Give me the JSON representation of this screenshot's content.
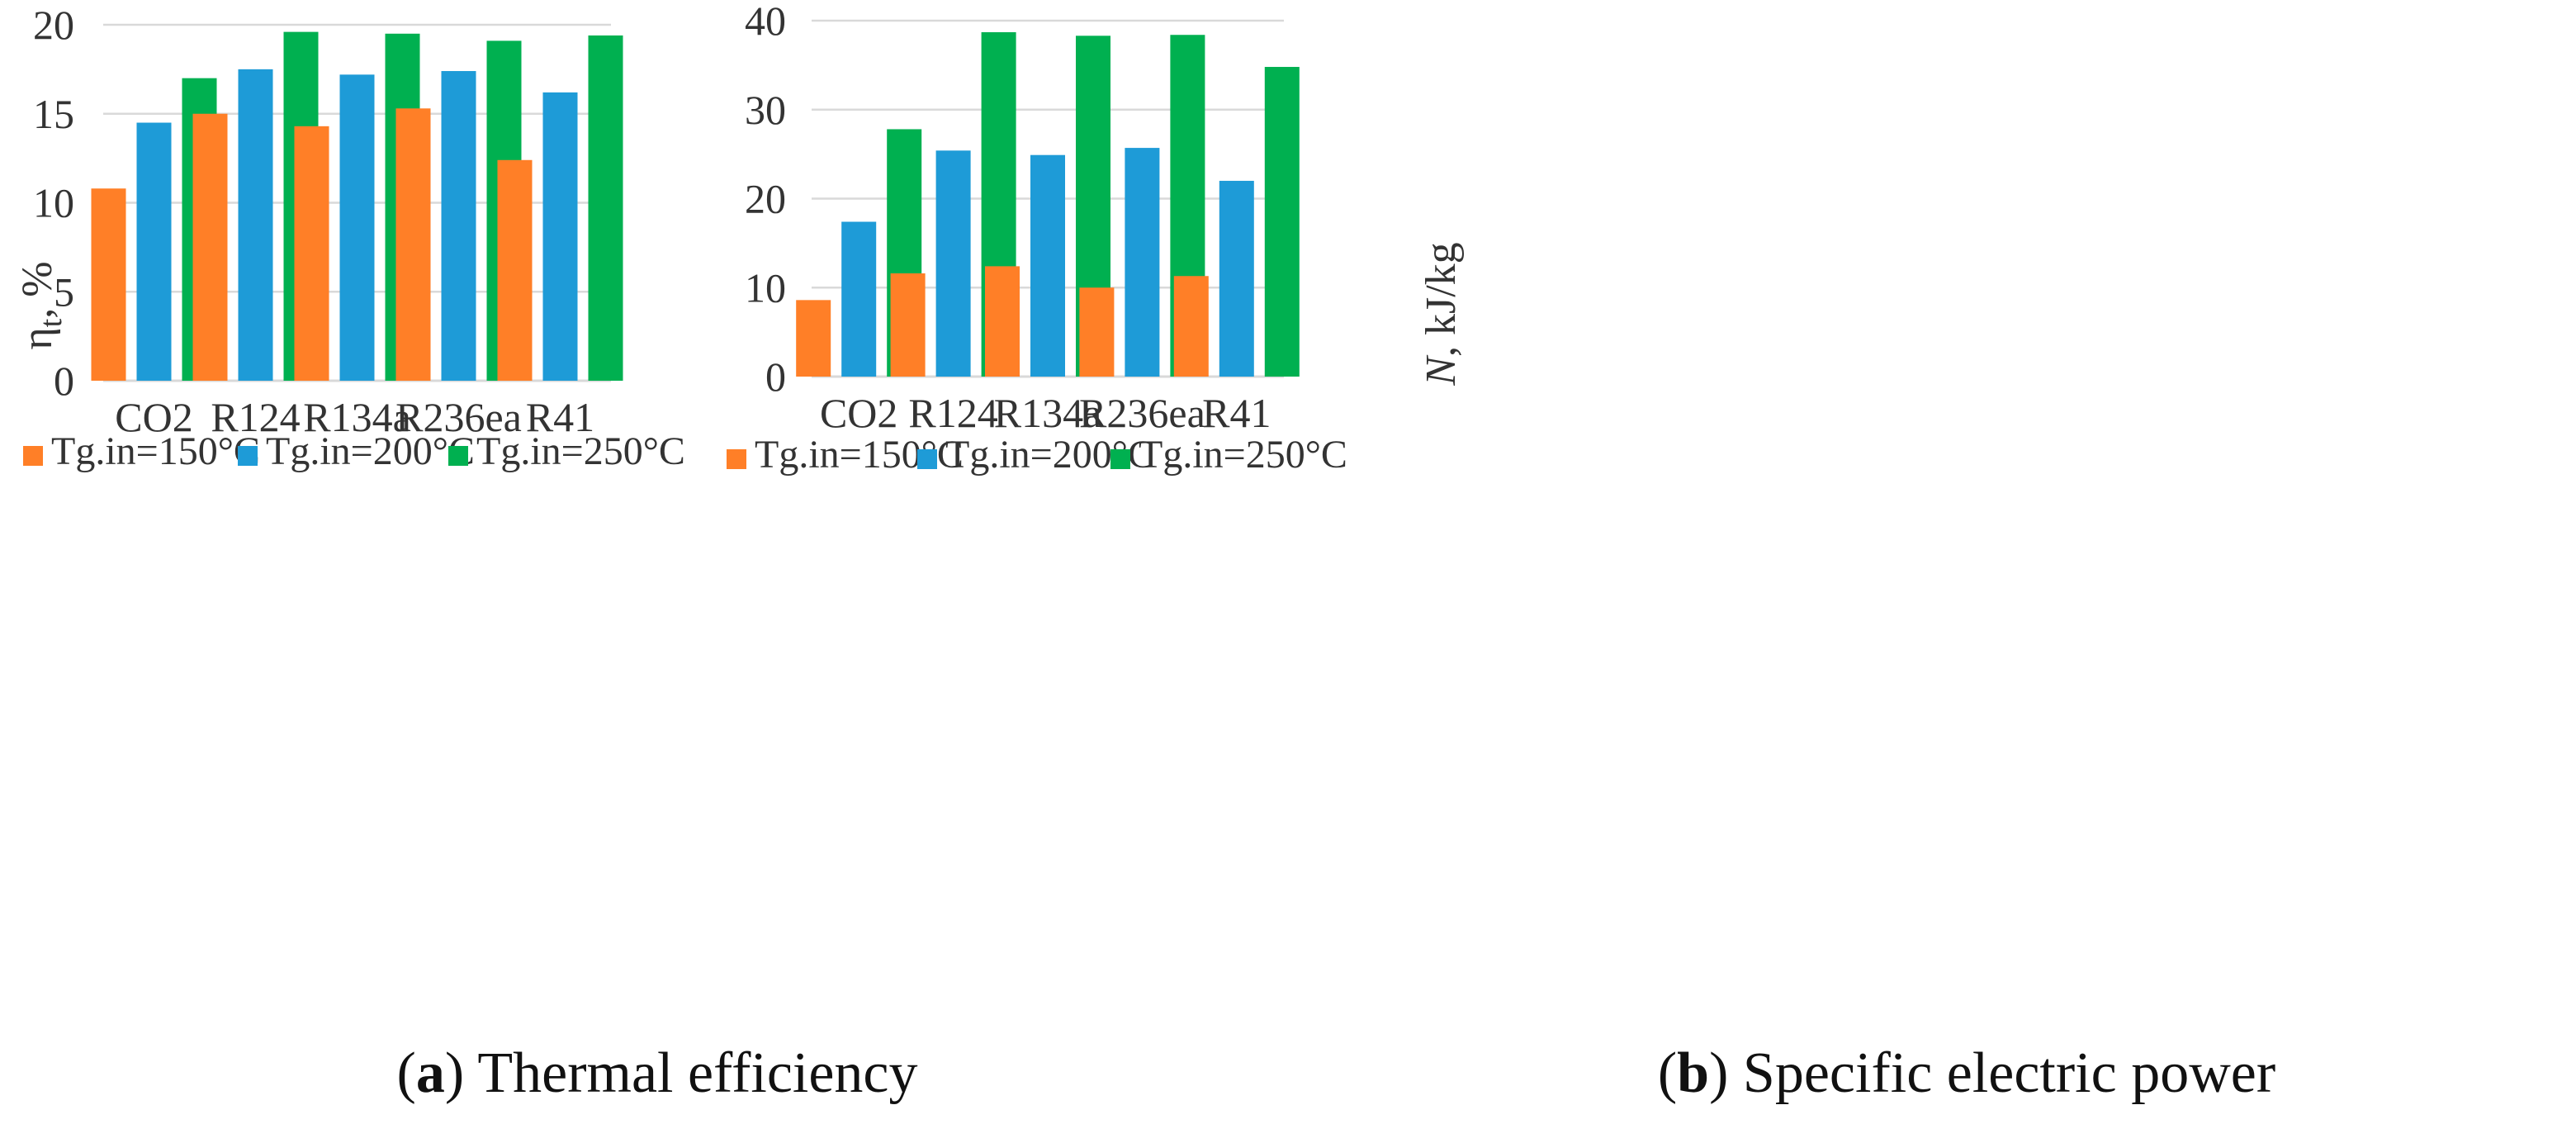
{
  "colors": {
    "150": "#FF7F27",
    "200": "#1E9BD7",
    "250": "#00B050",
    "grid": "#D9D9D9",
    "text": "#333333"
  },
  "charts": [
    {
      "id": "a",
      "caption": {
        "open": "(",
        "letter": "a",
        "close": ")",
        "text": " Thermal efficiency"
      },
      "ylabel": {
        "symbol": "η",
        "sub": "t",
        "unit": ", %"
      }
    },
    {
      "id": "b",
      "caption": {
        "open": "(",
        "letter": "b",
        "close": ")",
        "text": " Specific electric power"
      },
      "ylabel": {
        "symbol": "N",
        "unit": ", kJ/kg"
      }
    }
  ],
  "chart_data": [
    {
      "type": "bar",
      "title": "(a) Thermal efficiency",
      "xlabel": "",
      "ylabel": "ηt, %",
      "ylim": [
        0,
        20
      ],
      "yticks": [
        0,
        5,
        10,
        15,
        20
      ],
      "grid": true,
      "legend_position": "bottom",
      "categories": [
        "CO2",
        "R124",
        "R134a",
        "R236ea",
        "R41"
      ],
      "series": [
        {
          "name": "Tg.in=150°C",
          "values": [
            10.8,
            15.0,
            14.3,
            15.3,
            12.4
          ]
        },
        {
          "name": "Tg.in=200°C",
          "values": [
            14.5,
            17.5,
            17.2,
            17.4,
            16.2
          ]
        },
        {
          "name": "Tg.in=250°C",
          "values": [
            17.0,
            19.6,
            19.5,
            19.1,
            19.4
          ]
        }
      ]
    },
    {
      "type": "bar",
      "title": "(b) Specific electric power",
      "xlabel": "",
      "ylabel": "N, kJ/kg",
      "ylim": [
        0,
        40
      ],
      "yticks": [
        0,
        10,
        20,
        30,
        40
      ],
      "grid": true,
      "legend_position": "bottom",
      "categories": [
        "CO2",
        "R124",
        "R134a",
        "R236ea",
        "R41"
      ],
      "series": [
        {
          "name": "Tg.in=150°C",
          "values": [
            8.6,
            11.6,
            12.4,
            10.0,
            11.3
          ]
        },
        {
          "name": "Tg.in=200°C",
          "values": [
            17.4,
            25.4,
            24.9,
            25.7,
            22.0
          ]
        },
        {
          "name": "Tg.in=250°C",
          "values": [
            27.8,
            38.7,
            38.3,
            38.4,
            34.8
          ]
        }
      ]
    }
  ]
}
